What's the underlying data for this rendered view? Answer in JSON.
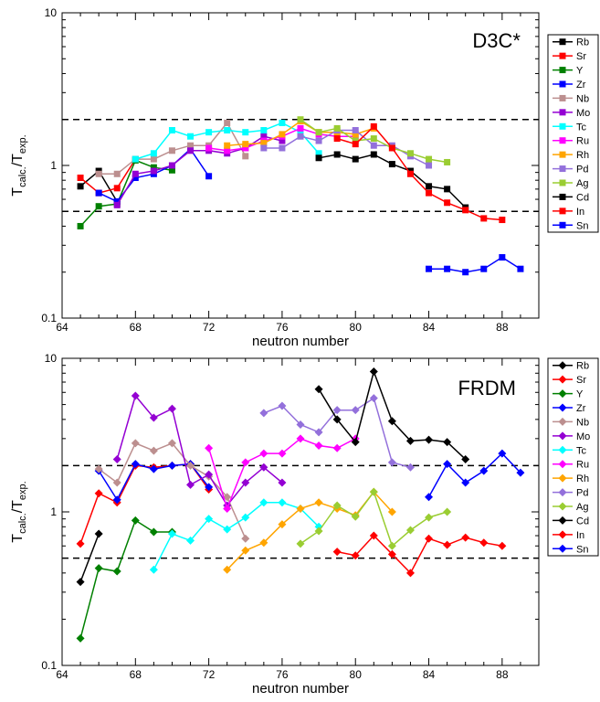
{
  "figure_ylabel": "T",
  "figure_ylabel_sub1": "calc.",
  "figure_ylabel_mid": "/T",
  "figure_ylabel_sub2": "exp.",
  "xlabel": "neutron number",
  "colors": {
    "Rb": "#000000",
    "Sr": "#ff0000",
    "Y": "#008000",
    "Zr": "#0000ff",
    "Nb": "#bc8f8f",
    "Mo": "#9400d3",
    "Tc": "#00ffff",
    "Ru": "#ff00ff",
    "Rh": "#ffa500",
    "Pd": "#9370db",
    "Ag": "#9acd32",
    "Cd": "#000000",
    "In": "#ff0000",
    "Sn": "#0000ff"
  },
  "chart_data": [
    {
      "type": "line",
      "title": "D3C*",
      "marker": "square",
      "xlabel": "neutron number",
      "ylabel": "T calc./T exp.",
      "yscale": "log",
      "xlim": [
        64,
        90
      ],
      "ylim": [
        0.1,
        10
      ],
      "x_ticks": [
        64,
        68,
        72,
        76,
        80,
        84,
        88
      ],
      "y_ticks": [
        "0.1",
        "1",
        "10"
      ],
      "reference_lines": [
        0.5,
        2
      ],
      "legend_position": "right",
      "series": [
        {
          "name": "Rb",
          "points": [
            [
              65,
              0.73
            ],
            [
              66,
              0.92
            ],
            [
              67,
              0.58
            ]
          ]
        },
        {
          "name": "Sr",
          "points": [
            [
              65,
              0.83
            ],
            [
              66,
              0.66
            ],
            [
              67,
              0.71
            ],
            [
              68,
              1.1
            ]
          ]
        },
        {
          "name": "Y",
          "points": [
            [
              65,
              0.4
            ],
            [
              66,
              0.54
            ],
            [
              67,
              0.56
            ],
            [
              68,
              1.08
            ],
            [
              69,
              0.97
            ],
            [
              70,
              0.93
            ]
          ]
        },
        {
          "name": "Zr",
          "points": [
            [
              66,
              0.66
            ],
            [
              67,
              0.58
            ],
            [
              68,
              0.83
            ],
            [
              69,
              0.88
            ],
            [
              70,
              1.0
            ],
            [
              71,
              1.28
            ],
            [
              72,
              0.85
            ]
          ]
        },
        {
          "name": "Nb",
          "points": [
            [
              66,
              0.88
            ],
            [
              67,
              0.88
            ],
            [
              68,
              1.1
            ],
            [
              69,
              1.1
            ],
            [
              70,
              1.25
            ],
            [
              71,
              1.35
            ],
            [
              72,
              1.35
            ],
            [
              73,
              1.9
            ],
            [
              74,
              1.15
            ]
          ]
        },
        {
          "name": "Mo",
          "points": [
            [
              67,
              0.55
            ],
            [
              68,
              0.88
            ],
            [
              69,
              0.92
            ],
            [
              70,
              1.0
            ],
            [
              71,
              1.25
            ],
            [
              72,
              1.25
            ],
            [
              73,
              1.2
            ],
            [
              74,
              1.3
            ],
            [
              75,
              1.55
            ],
            [
              76,
              1.45
            ]
          ]
        },
        {
          "name": "Tc",
          "points": [
            [
              68,
              1.1
            ],
            [
              69,
              1.2
            ],
            [
              70,
              1.7
            ],
            [
              71,
              1.55
            ],
            [
              72,
              1.65
            ],
            [
              73,
              1.7
            ],
            [
              74,
              1.65
            ],
            [
              75,
              1.7
            ],
            [
              76,
              1.9
            ],
            [
              77,
              1.65
            ],
            [
              78,
              1.2
            ]
          ]
        },
        {
          "name": "Ru",
          "points": [
            [
              72,
              1.3
            ],
            [
              73,
              1.25
            ],
            [
              74,
              1.3
            ],
            [
              75,
              1.45
            ],
            [
              76,
              1.55
            ],
            [
              77,
              1.75
            ],
            [
              78,
              1.6
            ],
            [
              79,
              1.55
            ],
            [
              80,
              1.55
            ]
          ]
        },
        {
          "name": "Rh",
          "points": [
            [
              73,
              1.35
            ],
            [
              74,
              1.38
            ],
            [
              75,
              1.4
            ],
            [
              76,
              1.6
            ],
            [
              77,
              1.95
            ],
            [
              78,
              1.65
            ],
            [
              79,
              1.65
            ],
            [
              80,
              1.6
            ],
            [
              81,
              1.75
            ]
          ]
        },
        {
          "name": "Pd",
          "points": [
            [
              75,
              1.3
            ],
            [
              76,
              1.3
            ],
            [
              77,
              1.55
            ],
            [
              78,
              1.45
            ],
            [
              79,
              1.7
            ],
            [
              80,
              1.7
            ],
            [
              81,
              1.35
            ],
            [
              82,
              1.35
            ],
            [
              83,
              1.15
            ],
            [
              84,
              1.0
            ]
          ]
        },
        {
          "name": "Ag",
          "points": [
            [
              77,
              2.0
            ],
            [
              78,
              1.65
            ],
            [
              79,
              1.75
            ],
            [
              80,
              1.45
            ],
            [
              81,
              1.5
            ],
            [
              82,
              1.3
            ],
            [
              83,
              1.2
            ],
            [
              84,
              1.1
            ],
            [
              85,
              1.05
            ]
          ]
        },
        {
          "name": "Cd",
          "points": [
            [
              78,
              1.12
            ],
            [
              79,
              1.18
            ],
            [
              80,
              1.1
            ],
            [
              81,
              1.18
            ],
            [
              82,
              1.02
            ],
            [
              83,
              0.92
            ],
            [
              84,
              0.73
            ],
            [
              85,
              0.7
            ],
            [
              86,
              0.53
            ]
          ]
        },
        {
          "name": "In",
          "points": [
            [
              79,
              1.5
            ],
            [
              80,
              1.38
            ],
            [
              81,
              1.8
            ],
            [
              82,
              1.3
            ],
            [
              83,
              0.88
            ],
            [
              84,
              0.66
            ],
            [
              85,
              0.57
            ],
            [
              86,
              0.51
            ],
            [
              87,
              0.45
            ],
            [
              88,
              0.44
            ]
          ]
        },
        {
          "name": "Sn",
          "points": [
            [
              84,
              0.21
            ],
            [
              85,
              0.21
            ],
            [
              86,
              0.2
            ],
            [
              87,
              0.21
            ],
            [
              88,
              0.25
            ],
            [
              89,
              0.21
            ]
          ]
        }
      ]
    },
    {
      "type": "line",
      "title": "FRDM",
      "marker": "diamond",
      "xlabel": "neutron number",
      "ylabel": "T calc./T exp.",
      "yscale": "log",
      "xlim": [
        64,
        90
      ],
      "ylim": [
        0.1,
        10
      ],
      "x_ticks": [
        64,
        68,
        72,
        76,
        80,
        84,
        88
      ],
      "y_ticks": [
        "0.1",
        "1",
        "10"
      ],
      "reference_lines": [
        0.5,
        2
      ],
      "legend_position": "right",
      "series": [
        {
          "name": "Rb",
          "points": [
            [
              65,
              0.35
            ],
            [
              66,
              0.72
            ]
          ]
        },
        {
          "name": "Sr",
          "points": [
            [
              65,
              0.62
            ],
            [
              66,
              1.32
            ],
            [
              67,
              1.15
            ],
            [
              68,
              2.0
            ],
            [
              69,
              1.95
            ],
            [
              70,
              2.0
            ],
            [
              71,
              2.05
            ],
            [
              72,
              1.4
            ]
          ]
        },
        {
          "name": "Y",
          "points": [
            [
              65,
              0.15
            ],
            [
              66,
              0.43
            ],
            [
              67,
              0.41
            ],
            [
              68,
              0.88
            ],
            [
              69,
              0.74
            ],
            [
              70,
              0.74
            ]
          ]
        },
        {
          "name": "Zr",
          "points": [
            [
              66,
              1.85
            ],
            [
              67,
              1.2
            ],
            [
              68,
              2.05
            ],
            [
              69,
              1.9
            ],
            [
              70,
              2.0
            ],
            [
              71,
              2.05
            ],
            [
              72,
              1.45
            ]
          ]
        },
        {
          "name": "Nb",
          "points": [
            [
              66,
              1.9
            ],
            [
              67,
              1.55
            ],
            [
              68,
              2.8
            ],
            [
              69,
              2.5
            ],
            [
              70,
              2.8
            ],
            [
              71,
              2.0
            ],
            [
              72,
              1.7
            ],
            [
              73,
              1.25
            ],
            [
              74,
              0.67
            ]
          ]
        },
        {
          "name": "Mo",
          "points": [
            [
              67,
              2.2
            ],
            [
              68,
              5.7
            ],
            [
              69,
              4.1
            ],
            [
              70,
              4.7
            ],
            [
              71,
              1.5
            ],
            [
              72,
              1.75
            ],
            [
              73,
              1.1
            ],
            [
              74,
              1.55
            ],
            [
              75,
              1.95
            ],
            [
              76,
              1.55
            ]
          ]
        },
        {
          "name": "Tc",
          "points": [
            [
              69,
              0.42
            ],
            [
              70,
              0.72
            ],
            [
              71,
              0.65
            ],
            [
              72,
              0.9
            ],
            [
              73,
              0.77
            ],
            [
              74,
              0.92
            ],
            [
              75,
              1.15
            ],
            [
              76,
              1.15
            ],
            [
              77,
              1.05
            ],
            [
              78,
              0.8
            ]
          ]
        },
        {
          "name": "Ru",
          "points": [
            [
              72,
              2.6
            ],
            [
              73,
              1.05
            ],
            [
              74,
              2.1
            ],
            [
              75,
              2.4
            ],
            [
              76,
              2.4
            ],
            [
              77,
              3.0
            ],
            [
              78,
              2.7
            ],
            [
              79,
              2.6
            ],
            [
              80,
              3.0
            ]
          ]
        },
        {
          "name": "Rh",
          "points": [
            [
              73,
              0.42
            ],
            [
              74,
              0.56
            ],
            [
              75,
              0.63
            ],
            [
              76,
              0.83
            ],
            [
              77,
              1.05
            ],
            [
              78,
              1.15
            ],
            [
              79,
              1.05
            ],
            [
              80,
              0.95
            ],
            [
              81,
              1.35
            ],
            [
              82,
              1.0
            ]
          ]
        },
        {
          "name": "Pd",
          "points": [
            [
              75,
              4.4
            ],
            [
              76,
              4.9
            ],
            [
              77,
              3.7
            ],
            [
              78,
              3.3
            ],
            [
              79,
              4.6
            ],
            [
              80,
              4.6
            ],
            [
              81,
              5.5
            ],
            [
              82,
              2.1
            ],
            [
              83,
              1.95
            ]
          ]
        },
        {
          "name": "Ag",
          "points": [
            [
              77,
              0.62
            ],
            [
              78,
              0.75
            ],
            [
              79,
              1.1
            ],
            [
              80,
              0.93
            ],
            [
              81,
              1.35
            ],
            [
              82,
              0.6
            ],
            [
              83,
              0.76
            ],
            [
              84,
              0.92
            ],
            [
              85,
              1.0
            ]
          ]
        },
        {
          "name": "Cd",
          "points": [
            [
              78,
              6.3
            ],
            [
              79,
              4.0
            ],
            [
              80,
              2.85
            ],
            [
              81,
              8.2
            ],
            [
              82,
              3.9
            ],
            [
              83,
              2.9
            ],
            [
              84,
              2.95
            ],
            [
              85,
              2.85
            ],
            [
              86,
              2.2
            ]
          ]
        },
        {
          "name": "In",
          "points": [
            [
              79,
              0.55
            ],
            [
              80,
              0.52
            ],
            [
              81,
              0.7
            ],
            [
              82,
              0.53
            ],
            [
              83,
              0.4
            ],
            [
              84,
              0.67
            ],
            [
              85,
              0.61
            ],
            [
              86,
              0.68
            ],
            [
              87,
              0.63
            ],
            [
              88,
              0.6
            ]
          ]
        },
        {
          "name": "Sn",
          "points": [
            [
              84,
              1.25
            ],
            [
              85,
              2.05
            ],
            [
              86,
              1.55
            ],
            [
              87,
              1.85
            ],
            [
              88,
              2.4
            ],
            [
              89,
              1.8
            ]
          ]
        }
      ]
    }
  ]
}
